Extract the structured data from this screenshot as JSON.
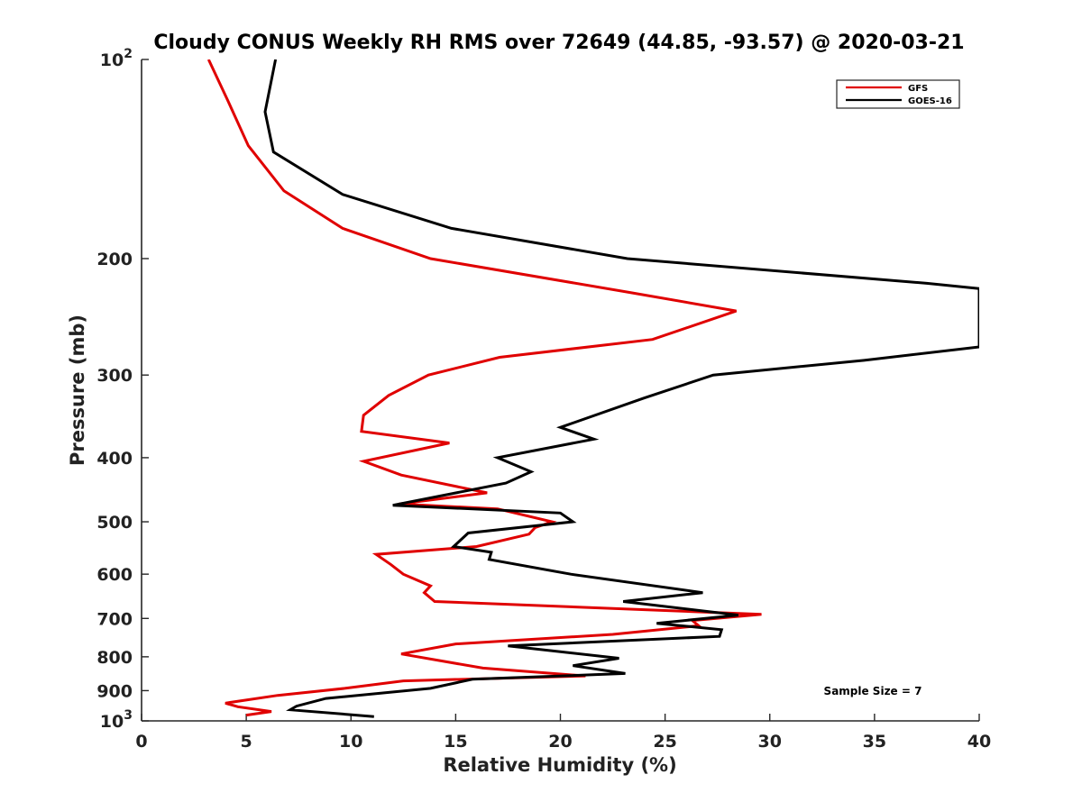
{
  "chart_data": {
    "type": "line",
    "title": "Cloudy CONUS Weekly RH RMS over 72649 (44.85, -93.57) @ 2020-03-21",
    "xlabel": "Relative Humidity (%)",
    "ylabel": "Pressure (mb)",
    "xlim": [
      0,
      40
    ],
    "ylim": [
      1000,
      100
    ],
    "yscale": "log",
    "y_reversed": true,
    "grid": false,
    "legend_position": "top-right",
    "x_ticks": [
      0,
      5,
      10,
      15,
      20,
      25,
      30,
      35,
      40
    ],
    "y_ticks": [
      {
        "value": 100,
        "base": "10",
        "exp": "2"
      },
      {
        "value": 200,
        "label": "200"
      },
      {
        "value": 300,
        "label": "300"
      },
      {
        "value": 400,
        "label": "400"
      },
      {
        "value": 500,
        "label": "500"
      },
      {
        "value": 600,
        "label": "600"
      },
      {
        "value": 700,
        "label": "700"
      },
      {
        "value": 800,
        "label": "800"
      },
      {
        "value": 900,
        "label": "900"
      },
      {
        "value": 1000,
        "base": "10",
        "exp": "3"
      }
    ],
    "annotation": "Sample Size = 7",
    "series": [
      {
        "name": "GFS",
        "color": "#e00000",
        "points": [
          [
            3.2,
            100
          ],
          [
            4.1,
            115
          ],
          [
            5.1,
            135
          ],
          [
            6.8,
            158
          ],
          [
            9.6,
            180
          ],
          [
            13.8,
            200
          ],
          [
            23.3,
            225
          ],
          [
            28.4,
            240
          ],
          [
            24.4,
            265
          ],
          [
            17.1,
            282
          ],
          [
            13.7,
            300
          ],
          [
            11.8,
            322
          ],
          [
            10.6,
            345
          ],
          [
            10.5,
            365
          ],
          [
            14.7,
            380
          ],
          [
            10.6,
            405
          ],
          [
            12.4,
            425
          ],
          [
            16.5,
            452
          ],
          [
            12.3,
            470
          ],
          [
            17.0,
            478
          ],
          [
            19.6,
            500
          ],
          [
            18.8,
            510
          ],
          [
            18.5,
            522
          ],
          [
            16.0,
            545
          ],
          [
            11.2,
            560
          ],
          [
            11.9,
            580
          ],
          [
            12.5,
            600
          ],
          [
            13.8,
            625
          ],
          [
            13.5,
            640
          ],
          [
            14.0,
            660
          ],
          [
            29.6,
            690
          ],
          [
            26.3,
            705
          ],
          [
            26.6,
            718
          ],
          [
            22.5,
            740
          ],
          [
            15.0,
            765
          ],
          [
            12.4,
            792
          ],
          [
            16.3,
            832
          ],
          [
            21.2,
            855
          ],
          [
            12.5,
            870
          ],
          [
            9.7,
            893
          ],
          [
            6.5,
            915
          ],
          [
            4.0,
            940
          ],
          [
            4.6,
            952
          ],
          [
            6.2,
            968
          ],
          [
            5.0,
            980
          ]
        ]
      },
      {
        "name": "GOES-16",
        "color": "#000000",
        "points": [
          [
            6.4,
            100
          ],
          [
            5.9,
            120
          ],
          [
            6.3,
            138
          ],
          [
            9.6,
            160
          ],
          [
            14.8,
            180
          ],
          [
            23.2,
            200
          ],
          [
            37.5,
            218
          ],
          [
            40.0,
            222
          ],
          [
            40.0,
            272
          ],
          [
            34.5,
            285
          ],
          [
            27.3,
            300
          ],
          [
            24.0,
            325
          ],
          [
            20.0,
            360
          ],
          [
            21.6,
            375
          ],
          [
            17.0,
            400
          ],
          [
            18.6,
            420
          ],
          [
            17.4,
            437
          ],
          [
            12.0,
            472
          ],
          [
            20.0,
            485
          ],
          [
            20.6,
            500
          ],
          [
            15.6,
            520
          ],
          [
            14.9,
            545
          ],
          [
            16.7,
            556
          ],
          [
            16.6,
            570
          ],
          [
            20.5,
            600
          ],
          [
            26.8,
            640
          ],
          [
            23.0,
            660
          ],
          [
            28.5,
            692
          ],
          [
            24.6,
            712
          ],
          [
            27.7,
            728
          ],
          [
            27.6,
            745
          ],
          [
            17.5,
            770
          ],
          [
            22.8,
            804
          ],
          [
            20.6,
            825
          ],
          [
            23.1,
            848
          ],
          [
            15.8,
            865
          ],
          [
            13.8,
            893
          ],
          [
            8.8,
            925
          ],
          [
            7.4,
            950
          ],
          [
            7.1,
            962
          ],
          [
            11.1,
            985
          ]
        ]
      }
    ]
  }
}
